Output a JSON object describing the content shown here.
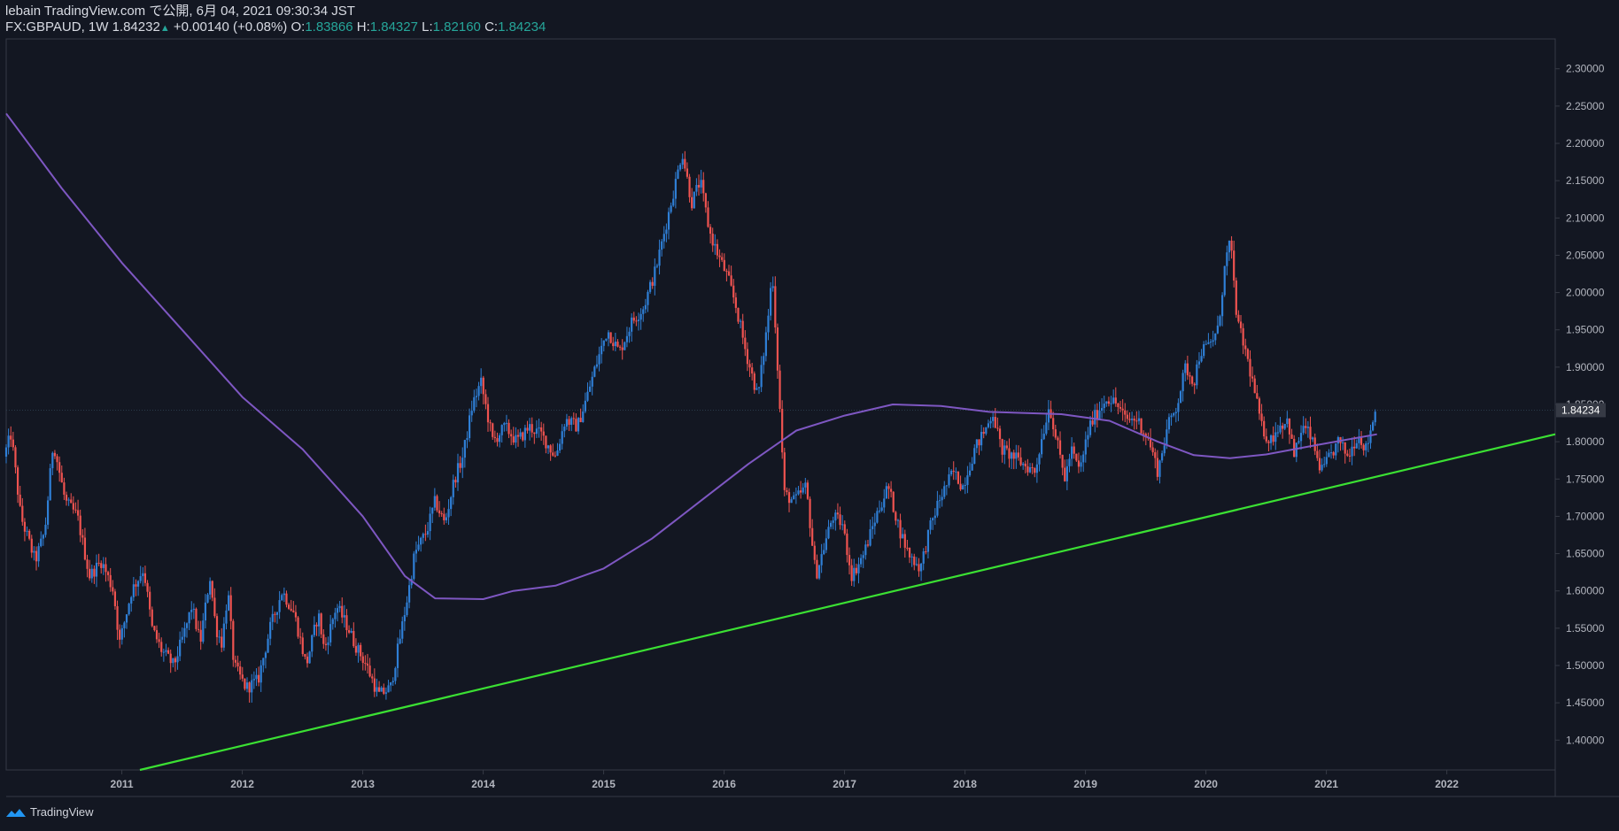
{
  "header": {
    "line1": "lebain TradingView.com で公開, 6月 04, 2021 09:30:34 JST",
    "symbol": "FX:GBPAUD, 1W",
    "last": "1.84232",
    "change": "+0.00140 (+0.08%)",
    "o_label": "O:",
    "o": "1.83866",
    "h_label": "H:",
    "h": "1.84327",
    "l_label": "L:",
    "l": "1.82160",
    "c_label": "C:",
    "c": "1.84234"
  },
  "footer": {
    "brand": "TradingView"
  },
  "colors": {
    "bg": "#131722",
    "up": "#2f7fd6",
    "down": "#ef5350",
    "ma": "#7e57c2",
    "trendline": "#3be033",
    "axis_text": "#b2b5be",
    "accent": "#26a69a"
  },
  "chart_data": {
    "type": "candlestick",
    "symbol": "FX:GBPAUD",
    "interval": "1W",
    "ylim": [
      1.36,
      2.34
    ],
    "y_ticks": [
      1.4,
      1.45,
      1.5,
      1.55,
      1.6,
      1.65,
      1.7,
      1.75,
      1.8,
      1.85,
      1.9,
      1.95,
      2.0,
      2.05,
      2.1,
      2.15,
      2.2,
      2.25,
      2.3
    ],
    "y_tick_labels": [
      "1.40000",
      "1.45000",
      "1.50000",
      "1.55000",
      "1.60000",
      "1.65000",
      "1.70000",
      "1.75000",
      "1.80000",
      "1.85000",
      "1.90000",
      "1.95000",
      "2.00000",
      "2.05000",
      "2.10000",
      "2.15000",
      "2.20000",
      "2.25000",
      "2.30000"
    ],
    "xlim": [
      2010.04,
      2022.9
    ],
    "x_ticks": [
      2011,
      2012,
      2013,
      2014,
      2015,
      2016,
      2017,
      2018,
      2019,
      2020,
      2021,
      2022
    ],
    "x_tick_labels": [
      "2011",
      "2012",
      "2013",
      "2014",
      "2015",
      "2016",
      "2017",
      "2018",
      "2019",
      "2020",
      "2021",
      "2022"
    ],
    "last_price_label": "1.84234",
    "last_price": 1.84234,
    "price_path": [
      [
        2010.04,
        1.78
      ],
      [
        2010.1,
        1.81
      ],
      [
        2010.18,
        1.7
      ],
      [
        2010.3,
        1.64
      ],
      [
        2010.38,
        1.68
      ],
      [
        2010.45,
        1.8
      ],
      [
        2010.55,
        1.72
      ],
      [
        2010.65,
        1.7
      ],
      [
        2010.75,
        1.62
      ],
      [
        2010.85,
        1.64
      ],
      [
        2010.95,
        1.6
      ],
      [
        2011.0,
        1.53
      ],
      [
        2011.1,
        1.6
      ],
      [
        2011.2,
        1.63
      ],
      [
        2011.27,
        1.55
      ],
      [
        2011.35,
        1.52
      ],
      [
        2011.45,
        1.5
      ],
      [
        2011.55,
        1.55
      ],
      [
        2011.6,
        1.58
      ],
      [
        2011.67,
        1.53
      ],
      [
        2011.75,
        1.62
      ],
      [
        2011.8,
        1.55
      ],
      [
        2011.85,
        1.53
      ],
      [
        2011.9,
        1.6
      ],
      [
        2011.95,
        1.5
      ],
      [
        2012.05,
        1.47
      ],
      [
        2012.15,
        1.48
      ],
      [
        2012.25,
        1.55
      ],
      [
        2012.35,
        1.6
      ],
      [
        2012.45,
        1.57
      ],
      [
        2012.55,
        1.5
      ],
      [
        2012.65,
        1.57
      ],
      [
        2012.7,
        1.52
      ],
      [
        2012.8,
        1.58
      ],
      [
        2012.9,
        1.55
      ],
      [
        2012.95,
        1.53
      ],
      [
        2013.05,
        1.5
      ],
      [
        2013.15,
        1.46
      ],
      [
        2013.25,
        1.47
      ],
      [
        2013.32,
        1.53
      ],
      [
        2013.4,
        1.6
      ],
      [
        2013.45,
        1.65
      ],
      [
        2013.55,
        1.68
      ],
      [
        2013.62,
        1.72
      ],
      [
        2013.7,
        1.69
      ],
      [
        2013.78,
        1.75
      ],
      [
        2013.85,
        1.78
      ],
      [
        2013.93,
        1.85
      ],
      [
        2014.0,
        1.88
      ],
      [
        2014.1,
        1.8
      ],
      [
        2014.2,
        1.82
      ],
      [
        2014.3,
        1.8
      ],
      [
        2014.4,
        1.82
      ],
      [
        2014.5,
        1.81
      ],
      [
        2014.62,
        1.78
      ],
      [
        2014.7,
        1.83
      ],
      [
        2014.8,
        1.82
      ],
      [
        2014.88,
        1.86
      ],
      [
        2014.95,
        1.9
      ],
      [
        2015.05,
        1.95
      ],
      [
        2015.15,
        1.92
      ],
      [
        2015.25,
        1.96
      ],
      [
        2015.35,
        1.98
      ],
      [
        2015.45,
        2.03
      ],
      [
        2015.55,
        2.1
      ],
      [
        2015.62,
        2.15
      ],
      [
        2015.67,
        2.19
      ],
      [
        2015.75,
        2.12
      ],
      [
        2015.82,
        2.15
      ],
      [
        2015.9,
        2.08
      ],
      [
        2015.97,
        2.05
      ],
      [
        2016.05,
        2.02
      ],
      [
        2016.12,
        1.98
      ],
      [
        2016.2,
        1.92
      ],
      [
        2016.3,
        1.86
      ],
      [
        2016.38,
        1.96
      ],
      [
        2016.42,
        2.03
      ],
      [
        2016.48,
        1.85
      ],
      [
        2016.52,
        1.73
      ],
      [
        2016.6,
        1.72
      ],
      [
        2016.7,
        1.74
      ],
      [
        2016.78,
        1.62
      ],
      [
        2016.85,
        1.66
      ],
      [
        2016.92,
        1.7
      ],
      [
        2017.0,
        1.69
      ],
      [
        2017.08,
        1.62
      ],
      [
        2017.18,
        1.65
      ],
      [
        2017.28,
        1.7
      ],
      [
        2017.38,
        1.74
      ],
      [
        2017.48,
        1.68
      ],
      [
        2017.55,
        1.65
      ],
      [
        2017.65,
        1.63
      ],
      [
        2017.72,
        1.68
      ],
      [
        2017.8,
        1.72
      ],
      [
        2017.92,
        1.76
      ],
      [
        2018.0,
        1.74
      ],
      [
        2018.1,
        1.79
      ],
      [
        2018.2,
        1.82
      ],
      [
        2018.25,
        1.84
      ],
      [
        2018.32,
        1.79
      ],
      [
        2018.42,
        1.78
      ],
      [
        2018.5,
        1.77
      ],
      [
        2018.6,
        1.76
      ],
      [
        2018.65,
        1.8
      ],
      [
        2018.72,
        1.85
      ],
      [
        2018.78,
        1.8
      ],
      [
        2018.85,
        1.75
      ],
      [
        2018.9,
        1.79
      ],
      [
        2018.97,
        1.76
      ],
      [
        2019.05,
        1.82
      ],
      [
        2019.12,
        1.84
      ],
      [
        2019.2,
        1.86
      ],
      [
        2019.28,
        1.85
      ],
      [
        2019.35,
        1.83
      ],
      [
        2019.45,
        1.83
      ],
      [
        2019.55,
        1.8
      ],
      [
        2019.62,
        1.76
      ],
      [
        2019.7,
        1.82
      ],
      [
        2019.78,
        1.85
      ],
      [
        2019.85,
        1.9
      ],
      [
        2019.92,
        1.88
      ],
      [
        2019.97,
        1.92
      ],
      [
        2020.05,
        1.93
      ],
      [
        2020.12,
        1.95
      ],
      [
        2020.18,
        2.04
      ],
      [
        2020.22,
        2.07
      ],
      [
        2020.28,
        1.96
      ],
      [
        2020.35,
        1.92
      ],
      [
        2020.42,
        1.87
      ],
      [
        2020.48,
        1.82
      ],
      [
        2020.55,
        1.8
      ],
      [
        2020.62,
        1.82
      ],
      [
        2020.7,
        1.83
      ],
      [
        2020.75,
        1.78
      ],
      [
        2020.82,
        1.82
      ],
      [
        2020.88,
        1.81
      ],
      [
        2020.92,
        1.79
      ],
      [
        2020.98,
        1.76
      ],
      [
        2021.05,
        1.78
      ],
      [
        2021.12,
        1.8
      ],
      [
        2021.2,
        1.78
      ],
      [
        2021.28,
        1.81
      ],
      [
        2021.35,
        1.79
      ],
      [
        2021.42,
        1.84
      ]
    ],
    "moving_average": {
      "color": "#7e57c2",
      "points": [
        [
          2010.04,
          2.24
        ],
        [
          2010.5,
          2.14
        ],
        [
          2011.0,
          2.04
        ],
        [
          2011.5,
          1.95
        ],
        [
          2012.0,
          1.86
        ],
        [
          2012.5,
          1.79
        ],
        [
          2013.0,
          1.7
        ],
        [
          2013.35,
          1.62
        ],
        [
          2013.6,
          1.59
        ],
        [
          2014.0,
          1.589
        ],
        [
          2014.25,
          1.6
        ],
        [
          2014.6,
          1.607
        ],
        [
          2015.0,
          1.63
        ],
        [
          2015.4,
          1.67
        ],
        [
          2015.8,
          1.72
        ],
        [
          2016.2,
          1.77
        ],
        [
          2016.6,
          1.815
        ],
        [
          2017.0,
          1.835
        ],
        [
          2017.4,
          1.85
        ],
        [
          2017.8,
          1.848
        ],
        [
          2018.2,
          1.84
        ],
        [
          2018.8,
          1.837
        ],
        [
          2019.2,
          1.828
        ],
        [
          2019.6,
          1.8
        ],
        [
          2019.9,
          1.782
        ],
        [
          2020.2,
          1.778
        ],
        [
          2020.5,
          1.783
        ],
        [
          2020.9,
          1.795
        ],
        [
          2021.42,
          1.81
        ]
      ]
    },
    "trendline": {
      "color": "#3be033",
      "points": [
        [
          2011.15,
          1.36
        ],
        [
          2022.9,
          1.81
        ]
      ]
    }
  }
}
